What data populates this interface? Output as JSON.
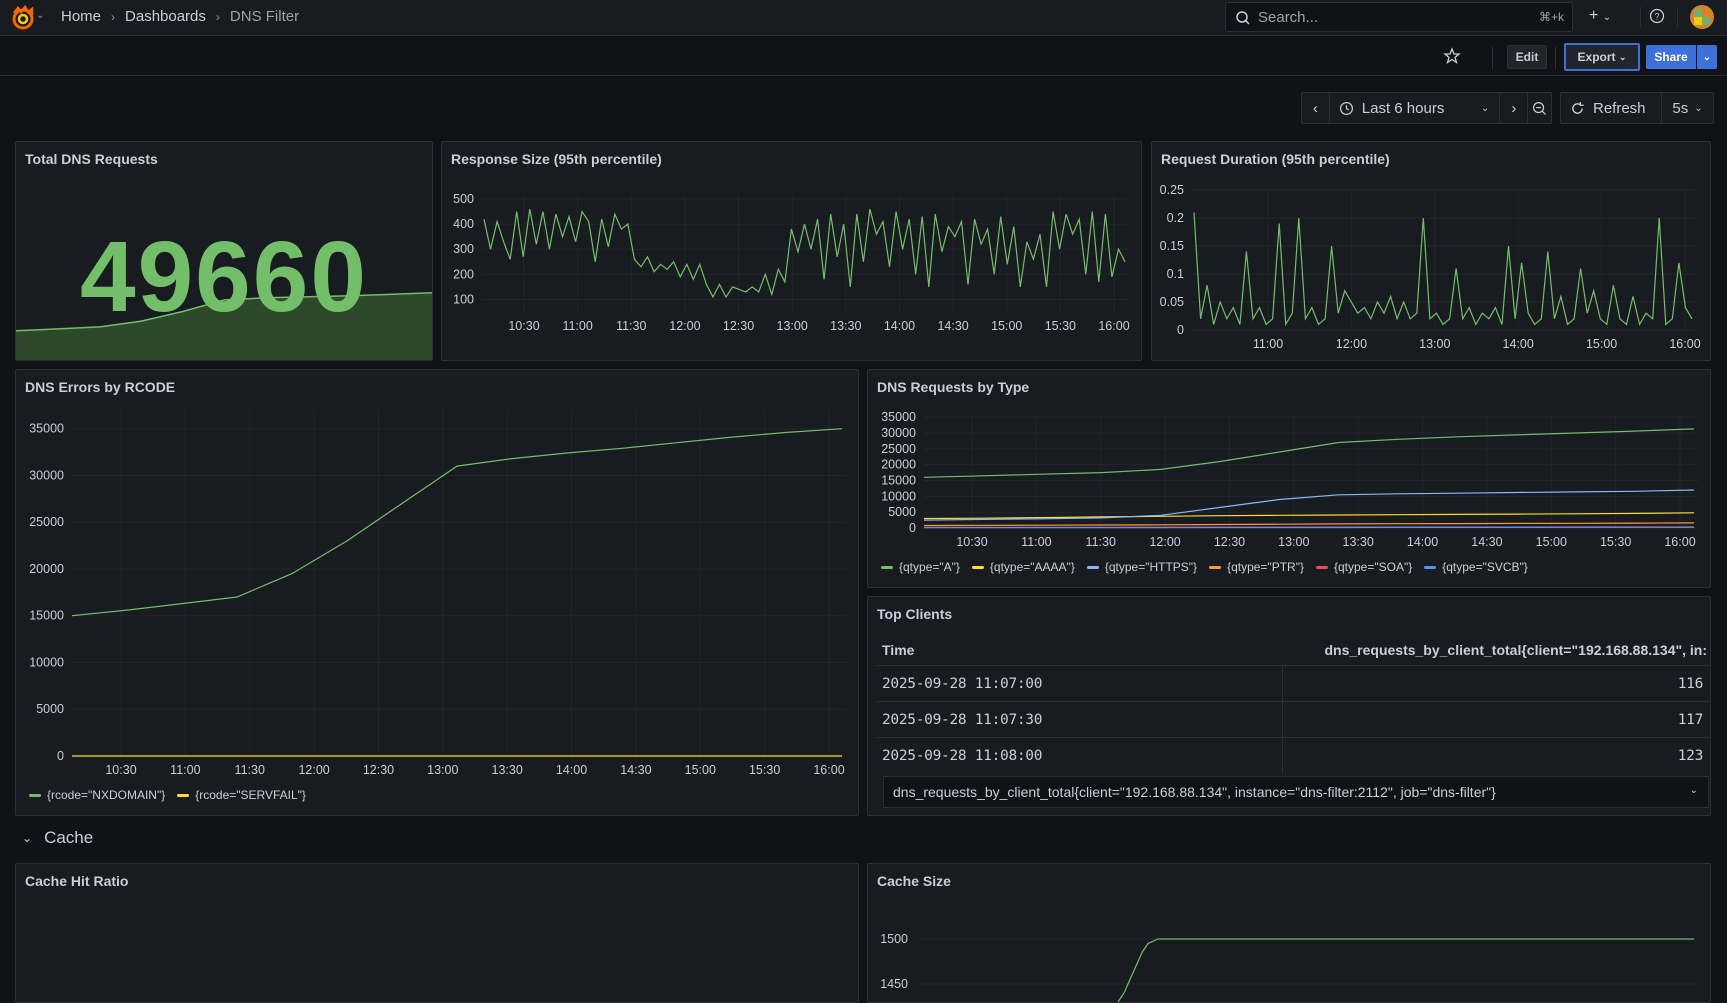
{
  "breadcrumbs": [
    "Home",
    "Dashboards",
    "DNS Filter"
  ],
  "search": {
    "placeholder": "Search...",
    "shortcut": "⌘+k"
  },
  "toolbar": {
    "edit": "Edit",
    "export": "Export",
    "share": "Share"
  },
  "time": {
    "range": "Last 6 hours",
    "refresh": "Refresh",
    "interval": "5s"
  },
  "colors": {
    "green": "#73bf69",
    "yellow": "#fade2a",
    "blue": "#8ab8ff",
    "orange": "#ff9830",
    "red": "#f2495c",
    "blue2": "#5794f2"
  },
  "panels": {
    "total": {
      "title": "Total DNS Requests",
      "value": "49660"
    },
    "resp": {
      "title": "Response Size (95th percentile)"
    },
    "dur": {
      "title": "Request Duration (95th percentile)"
    },
    "errors": {
      "title": "DNS Errors by RCODE"
    },
    "types": {
      "title": "DNS Requests by Type"
    },
    "clients": {
      "title": "Top Clients",
      "col_time": "Time",
      "col_value": "dns_requests_by_client_total{client=\"192.168.88.134\", in:",
      "rows": [
        {
          "time": "2025-09-28 11:07:00",
          "value": "116"
        },
        {
          "time": "2025-09-28 11:07:30",
          "value": "117"
        },
        {
          "time": "2025-09-28 11:08:00",
          "value": "123"
        }
      ],
      "selected_series": "dns_requests_by_client_total{client=\"192.168.88.134\", instance=\"dns-filter:2112\", job=\"dns-filter\"}"
    },
    "cache_row": {
      "title": "Cache"
    },
    "cache_hit": {
      "title": "Cache Hit Ratio"
    },
    "cache_size": {
      "title": "Cache Size"
    }
  },
  "chart_data": [
    {
      "type": "area",
      "title": "Total DNS Requests",
      "x": [
        0,
        1,
        2,
        3,
        4,
        5,
        6,
        7,
        8,
        9,
        10
      ],
      "values": [
        15000,
        16000,
        17000,
        20000,
        25000,
        31000,
        32000,
        32500,
        33000,
        33800,
        34600
      ]
    },
    {
      "type": "line",
      "title": "Response Size (95th percentile)",
      "x_ticks": [
        "10:30",
        "11:00",
        "11:30",
        "12:00",
        "12:30",
        "13:00",
        "13:30",
        "14:00",
        "14:30",
        "15:00",
        "15:30",
        "16:00"
      ],
      "y_ticks": [
        "100",
        "200",
        "300",
        "400",
        "500"
      ],
      "ylim": [
        50,
        520
      ],
      "series": [
        {
          "color": "#73bf69",
          "values": [
            420,
            300,
            410,
            330,
            260,
            450,
            270,
            460,
            320,
            450,
            300,
            440,
            350,
            430,
            330,
            450,
            410,
            250,
            420,
            310,
            440,
            380,
            400,
            260,
            230,
            270,
            210,
            240,
            220,
            250,
            190,
            240,
            180,
            240,
            160,
            110,
            160,
            110,
            150,
            140,
            130,
            150,
            130,
            200,
            120,
            220,
            170,
            380,
            290,
            400,
            300,
            420,
            180,
            440,
            270,
            400,
            150,
            440,
            250,
            460,
            360,
            410,
            230,
            450,
            300,
            420,
            200,
            430,
            150,
            440,
            290,
            390,
            350,
            410,
            160,
            420,
            320,
            380,
            200,
            430,
            240,
            390,
            150,
            330,
            260,
            360,
            150,
            450,
            300,
            440,
            360,
            420,
            200,
            450,
            170,
            440,
            190,
            300,
            250
          ]
        }
      ]
    },
    {
      "type": "line",
      "title": "Request Duration (95th percentile)",
      "x_ticks": [
        "11:00",
        "12:00",
        "13:00",
        "14:00",
        "15:00",
        "16:00"
      ],
      "y_ticks": [
        "0",
        "0.05",
        "0.1",
        "0.15",
        "0.2",
        "0.25"
      ],
      "ylim": [
        0,
        0.25
      ],
      "series": [
        {
          "color": "#73bf69",
          "values": [
            0.21,
            0.02,
            0.08,
            0.01,
            0.05,
            0.02,
            0.04,
            0.01,
            0.14,
            0.02,
            0.04,
            0.01,
            0.02,
            0.19,
            0.01,
            0.03,
            0.2,
            0.02,
            0.04,
            0.01,
            0.02,
            0.15,
            0.03,
            0.07,
            0.05,
            0.03,
            0.04,
            0.02,
            0.05,
            0.03,
            0.06,
            0.02,
            0.05,
            0.02,
            0.03,
            0.2,
            0.02,
            0.03,
            0.01,
            0.02,
            0.11,
            0.02,
            0.04,
            0.01,
            0.03,
            0.02,
            0.04,
            0.01,
            0.15,
            0.02,
            0.12,
            0.03,
            0.01,
            0.02,
            0.14,
            0.02,
            0.06,
            0.01,
            0.02,
            0.11,
            0.03,
            0.07,
            0.02,
            0.01,
            0.08,
            0.02,
            0.01,
            0.06,
            0.01,
            0.03,
            0.02,
            0.2,
            0.01,
            0.02,
            0.12,
            0.04,
            0.02
          ]
        }
      ]
    },
    {
      "type": "line",
      "title": "DNS Errors by RCODE",
      "x_ticks": [
        "10:30",
        "11:00",
        "11:30",
        "12:00",
        "12:30",
        "13:00",
        "13:30",
        "14:00",
        "14:30",
        "15:00",
        "15:30",
        "16:00"
      ],
      "y_ticks": [
        "0",
        "5000",
        "10000",
        "15000",
        "20000",
        "25000",
        "30000",
        "35000"
      ],
      "ylim": [
        0,
        37000
      ],
      "series": [
        {
          "name": "{rcode=\"NXDOMAIN\"}",
          "color": "#73bf69",
          "values": [
            15000,
            15600,
            16300,
            17000,
            19500,
            23000,
            27000,
            31000,
            31800,
            32400,
            32900,
            33500,
            34100,
            34600,
            35000
          ]
        },
        {
          "name": "{rcode=\"SERVFAIL\"}",
          "color": "#fade2a",
          "values": [
            0,
            0,
            0,
            0,
            0,
            0,
            0,
            0,
            0,
            0,
            0,
            0,
            0,
            0,
            0
          ]
        }
      ]
    },
    {
      "type": "line",
      "title": "DNS Requests by Type",
      "x_ticks": [
        "10:30",
        "11:00",
        "11:30",
        "12:00",
        "12:30",
        "13:00",
        "13:30",
        "14:00",
        "14:30",
        "15:00",
        "15:30",
        "16:00"
      ],
      "y_ticks": [
        "0",
        "5000",
        "10000",
        "15000",
        "20000",
        "25000",
        "30000",
        "35000"
      ],
      "ylim": [
        0,
        36000
      ],
      "series": [
        {
          "name": "{qtype=\"A\"}",
          "color": "#73bf69",
          "values": [
            16000,
            16500,
            17000,
            17500,
            18500,
            21000,
            24000,
            27000,
            28000,
            28800,
            29400,
            30000,
            30600,
            31300
          ]
        },
        {
          "name": "{qtype=\"AAAA\"}",
          "color": "#fade2a",
          "values": [
            3000,
            3100,
            3300,
            3500,
            3700,
            3900,
            4000,
            4100,
            4200,
            4300,
            4400,
            4500,
            4600,
            4800
          ]
        },
        {
          "name": "{qtype=\"HTTPS\"}",
          "color": "#8ab8ff",
          "values": [
            2500,
            2700,
            2900,
            3200,
            4000,
            6500,
            9000,
            10500,
            10800,
            11000,
            11200,
            11400,
            11600,
            12000
          ]
        },
        {
          "name": "{qtype=\"PTR\"}",
          "color": "#ff9830",
          "values": [
            800,
            850,
            900,
            950,
            1000,
            1100,
            1200,
            1300,
            1350,
            1400,
            1450,
            1500,
            1550,
            1600
          ]
        },
        {
          "name": "{qtype=\"SOA\"}",
          "color": "#f2495c",
          "values": [
            200,
            210,
            220,
            230,
            240,
            250,
            260,
            270,
            280,
            290,
            300,
            310,
            320,
            330
          ]
        },
        {
          "name": "{qtype=\"SVCB\"}",
          "color": "#5794f2",
          "values": [
            100,
            110,
            120,
            130,
            140,
            150,
            160,
            170,
            180,
            190,
            200,
            210,
            220,
            230
          ]
        }
      ]
    },
    {
      "type": "line",
      "title": "Cache Size",
      "y_ticks": [
        "1450",
        "1500"
      ],
      "series": [
        {
          "color": "#73bf69",
          "values": [
            1430,
            1440,
            1455,
            1470,
            1485,
            1495,
            1500,
            1500,
            1500,
            1500,
            1500,
            1500,
            1500,
            1500,
            1500,
            1500,
            1500,
            1500
          ]
        }
      ]
    }
  ]
}
